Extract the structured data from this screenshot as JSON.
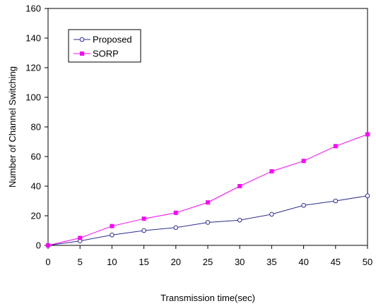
{
  "chart_data": {
    "type": "line",
    "title": "",
    "xlabel": "Transmission time(sec)",
    "ylabel": "Number of Channel Switching",
    "x": [
      0,
      5,
      10,
      15,
      20,
      25,
      30,
      35,
      40,
      45,
      50
    ],
    "xlim": [
      0,
      50
    ],
    "ylim": [
      0,
      160
    ],
    "xticks": [
      0,
      5,
      10,
      15,
      20,
      25,
      30,
      35,
      40,
      45,
      50
    ],
    "yticks": [
      0,
      20,
      40,
      60,
      80,
      100,
      120,
      140,
      160
    ],
    "grid": false,
    "legend_position": "top-left",
    "series": [
      {
        "name": "Proposed",
        "color": "#2b2d8c",
        "marker": "open-circle",
        "values": [
          0,
          3,
          7,
          10,
          12,
          15.5,
          17,
          21,
          27,
          30,
          33.5
        ]
      },
      {
        "name": "SORP",
        "color": "#ff00ff",
        "marker": "filled-square",
        "values": [
          0,
          5,
          13,
          18,
          22,
          29,
          40,
          50,
          57,
          67,
          75
        ]
      }
    ]
  }
}
